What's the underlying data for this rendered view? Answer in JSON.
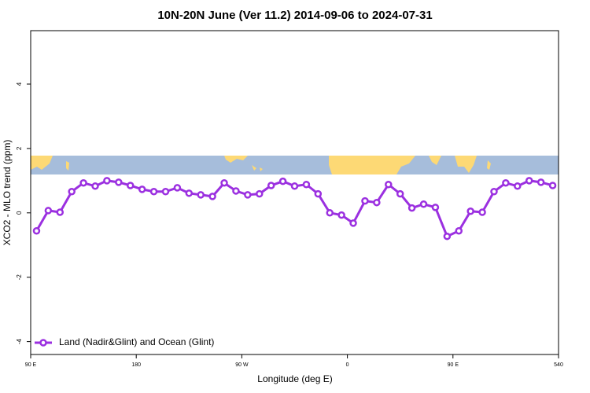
{
  "chart_data": {
    "type": "line",
    "title": "10N-20N June (Ver 11.2)   2014-09-06 to 2024-07-31",
    "x_label": "Longitude (deg E)",
    "y_label": "XCO2 - MLO trend (ppm)",
    "x": [
      95,
      105,
      115,
      125,
      135,
      145,
      155,
      165,
      175,
      185,
      195,
      205,
      215,
      225,
      235,
      245,
      255,
      265,
      275,
      285,
      295,
      305,
      315,
      325,
      335,
      345,
      355,
      365,
      375,
      385,
      395,
      405,
      415,
      425,
      435,
      445,
      455,
      465,
      475,
      485,
      495,
      505,
      515,
      525,
      535
    ],
    "series": [
      {
        "name": "Land (Nadir&Glint) and Ocean (Glint)",
        "color": "#9b30e0",
        "values": [
          -0.56,
          0.07,
          0.02,
          0.66,
          0.93,
          0.83,
          1.0,
          0.95,
          0.85,
          0.73,
          0.66,
          0.66,
          0.78,
          0.61,
          0.56,
          0.51,
          0.93,
          0.68,
          0.56,
          0.59,
          0.85,
          0.98,
          0.83,
          0.88,
          0.59,
          0.0,
          -0.07,
          -0.32,
          0.37,
          0.32,
          0.88,
          0.59,
          0.15,
          0.27,
          0.17,
          -0.73,
          -0.56,
          0.05,
          0.02,
          0.66,
          0.93,
          0.83,
          1.0,
          0.95,
          0.85
        ]
      }
    ],
    "xlim": [
      90,
      540
    ],
    "xticks": [
      {
        "value": 90,
        "label": "90 E"
      },
      180,
      {
        "value": 270,
        "label": "90 W"
      },
      {
        "value": 360,
        "label": "0"
      },
      {
        "value": 450,
        "label": "90 E"
      },
      540
    ],
    "ylim": [
      -4.4,
      5.66
    ],
    "yticks": [
      -4,
      -2,
      0,
      2,
      4
    ],
    "legend": "bottom-left"
  }
}
